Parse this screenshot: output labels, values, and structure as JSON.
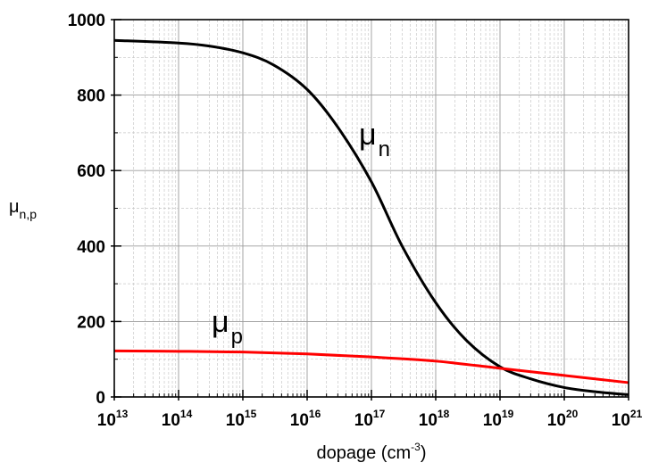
{
  "chart_data": {
    "type": "line",
    "xscale": "log",
    "xlim": [
      10000000000000.0,
      1e+21
    ],
    "ylim": [
      0,
      1000
    ],
    "grid": true,
    "xlabel": {
      "text": "dopage (cm",
      "superscript": "-3",
      "suffix": ")"
    },
    "ylabel": {
      "base": "μ",
      "subscript": "n,p"
    },
    "x_ticks": [
      {
        "base": "10",
        "exp": "13",
        "value": 10000000000000.0
      },
      {
        "base": "10",
        "exp": "14",
        "value": 100000000000000.0
      },
      {
        "base": "10",
        "exp": "15",
        "value": 1000000000000000.0
      },
      {
        "base": "10",
        "exp": "16",
        "value": 1e+16
      },
      {
        "base": "10",
        "exp": "17",
        "value": 1e+17
      },
      {
        "base": "10",
        "exp": "18",
        "value": 1e+18
      },
      {
        "base": "10",
        "exp": "19",
        "value": 1e+19
      },
      {
        "base": "10",
        "exp": "20",
        "value": 1e+20
      },
      {
        "base": "10",
        "exp": "21",
        "value": 1e+21
      }
    ],
    "y_ticks": [
      "0",
      "200",
      "400",
      "600",
      "800",
      "1000"
    ],
    "series": [
      {
        "label_base": "μ",
        "label_sub": "n",
        "color": "#000000",
        "x": [
          10000000000000.0,
          100000000000000.0,
          300000000000000.0,
          1000000000000000.0,
          3000000000000000.0,
          1e+16,
          3e+16,
          1e+17,
          3e+17,
          1e+18,
          3e+18,
          1e+19,
          3e+19,
          1e+20,
          3e+20,
          1e+21
        ],
        "y": [
          945,
          938,
          930,
          912,
          880,
          815,
          715,
          570,
          400,
          250,
          150,
          80,
          48,
          25,
          14,
          6
        ]
      },
      {
        "label_base": "μ",
        "label_sub": "p",
        "color": "#ff0000",
        "x": [
          10000000000000.0,
          100000000000000.0,
          1000000000000000.0,
          1e+16,
          1e+17,
          1e+18,
          1e+19,
          1e+20,
          1e+21
        ],
        "y": [
          122,
          121,
          119,
          114,
          106,
          95,
          76,
          57,
          38
        ]
      }
    ]
  }
}
